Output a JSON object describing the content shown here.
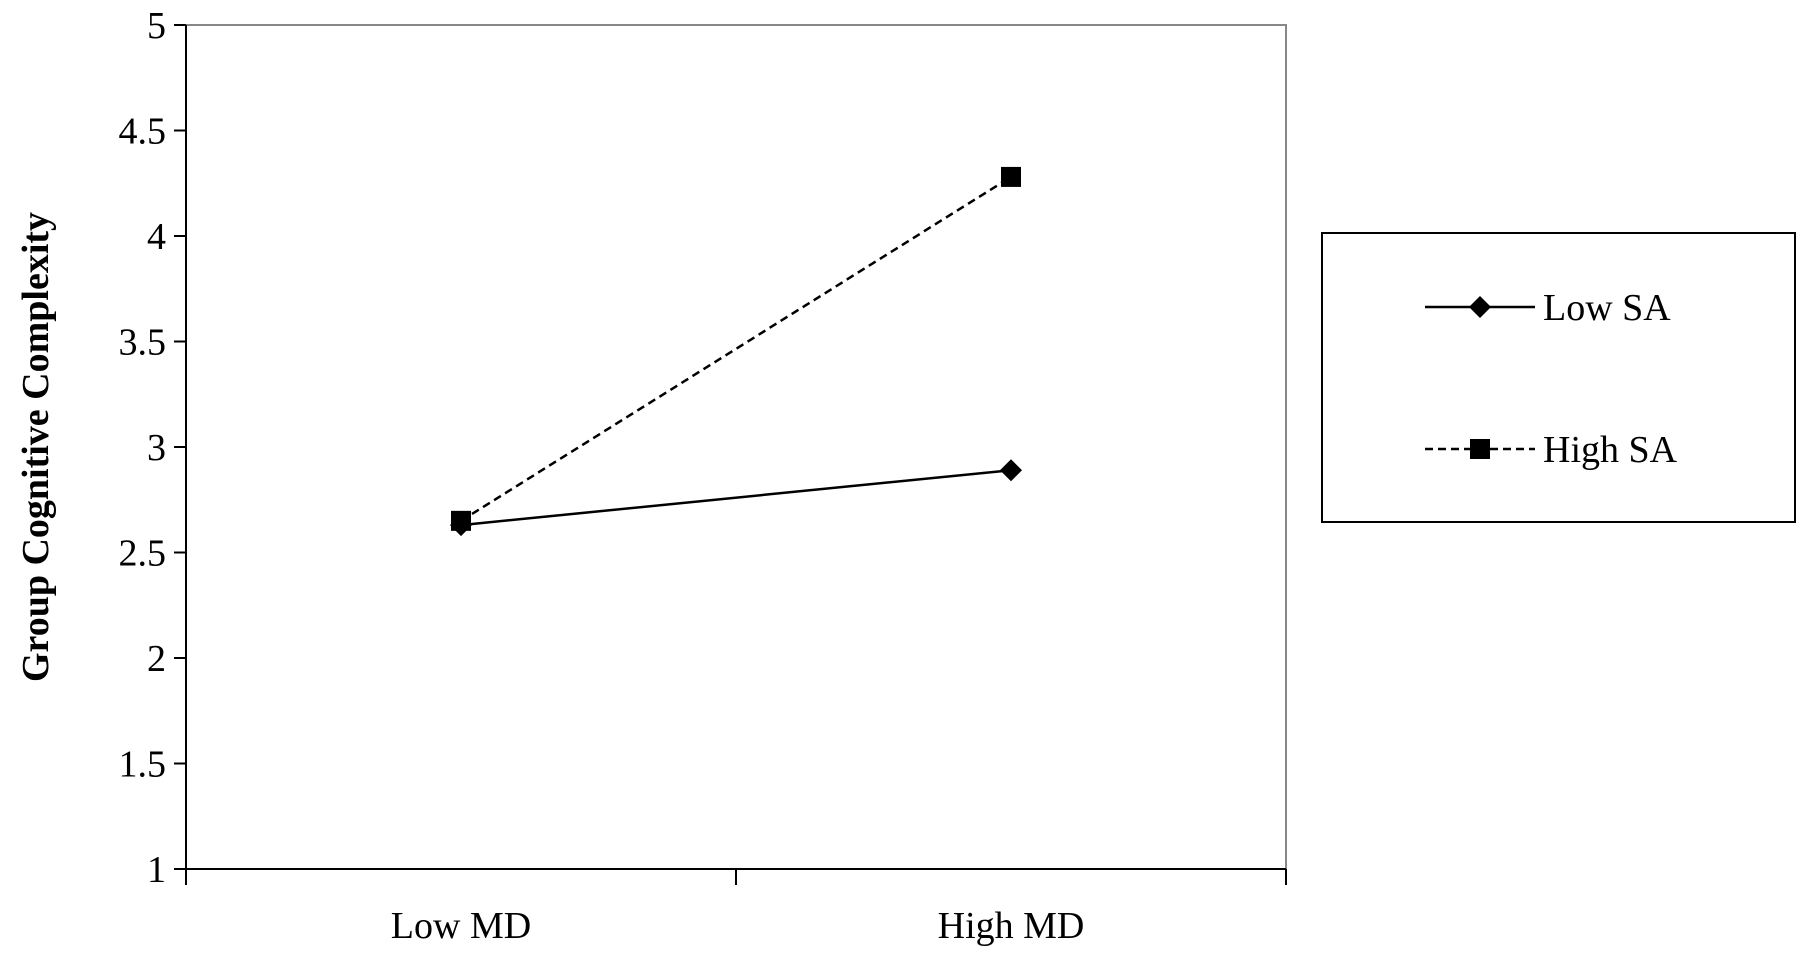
{
  "chart_data": {
    "type": "line",
    "title": "",
    "xlabel": "",
    "ylabel": "Group Cognitive Complexity",
    "categories": [
      "Low MD",
      "High MD"
    ],
    "ylim": [
      1,
      5
    ],
    "yticks": [
      "1",
      "1.5",
      "2",
      "2.5",
      "3",
      "3.5",
      "4",
      "4.5",
      "5"
    ],
    "grid": false,
    "legend_position": "right",
    "series": [
      {
        "name": "Low SA",
        "values": [
          2.63,
          2.89
        ],
        "line_style": "solid",
        "marker": "diamond",
        "color": "#000000"
      },
      {
        "name": "High SA",
        "values": [
          2.65,
          4.28
        ],
        "line_style": "dashed",
        "marker": "square",
        "color": "#000000"
      }
    ]
  }
}
